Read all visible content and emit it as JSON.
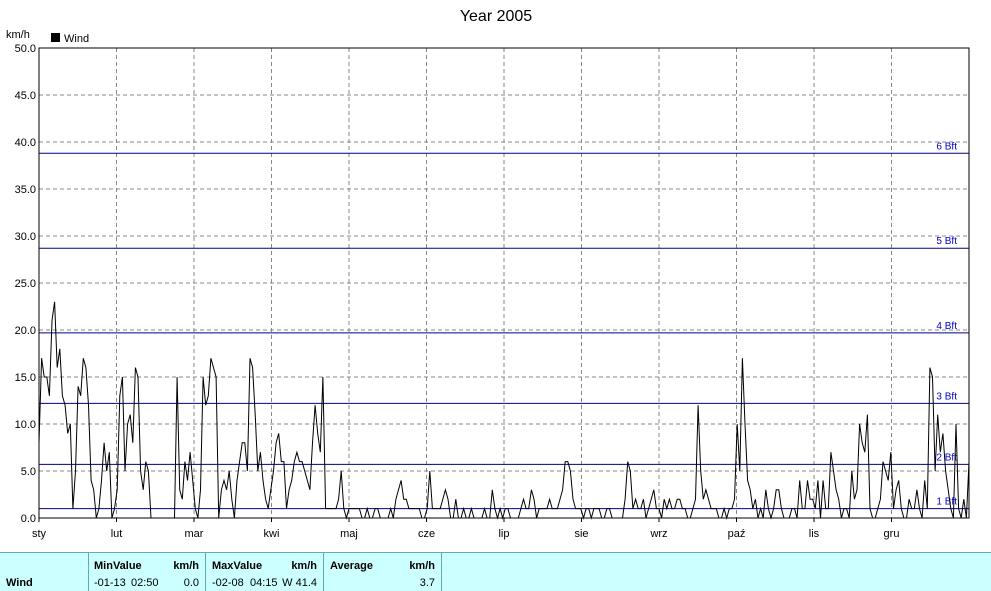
{
  "chart_data": {
    "type": "line",
    "title": "Year 2005",
    "ylabel": "km/h",
    "ylim": [
      0,
      50
    ],
    "yticks": [
      "0.0",
      "5.0",
      "10.0",
      "15.0",
      "20.0",
      "25.0",
      "30.0",
      "35.0",
      "40.0",
      "45.0",
      "50.0"
    ],
    "xticks": [
      "sty",
      "lut",
      "mar",
      "kwi",
      "maj",
      "cze",
      "lip",
      "sie",
      "wrz",
      "paź",
      "lis",
      "gru"
    ],
    "grid": true,
    "legend": {
      "position": "top-left",
      "entries": [
        "Wind"
      ]
    },
    "beaufort_lines": [
      {
        "label": "1 Bft",
        "value": 1.0
      },
      {
        "label": "2 Bft",
        "value": 5.7
      },
      {
        "label": "3 Bft",
        "value": 12.2
      },
      {
        "label": "4 Bft",
        "value": 19.7
      },
      {
        "label": "5 Bft",
        "value": 28.7
      },
      {
        "label": "6 Bft",
        "value": 38.8
      }
    ],
    "series": [
      {
        "name": "Wind",
        "values": [
          8,
          17,
          15,
          15,
          13,
          21,
          23,
          16,
          18,
          13,
          12,
          9,
          10,
          1,
          5,
          14,
          13,
          17,
          16,
          12,
          4,
          3,
          0,
          1,
          4,
          8,
          5,
          7,
          0,
          1,
          3,
          13,
          15,
          5,
          10,
          11,
          8,
          16,
          15,
          5,
          3,
          6,
          5,
          0,
          0,
          0,
          0,
          0,
          0,
          0,
          0,
          0,
          0,
          15,
          3,
          2,
          6,
          4,
          7,
          4,
          1,
          0,
          3,
          15,
          12,
          13,
          17,
          16,
          15,
          0,
          3,
          4,
          3,
          5,
          2,
          0,
          4,
          6,
          8,
          8,
          5,
          17,
          16,
          11,
          5,
          7,
          4,
          2,
          1,
          3,
          5,
          8,
          9,
          6,
          6,
          1,
          3,
          4,
          6,
          7,
          6,
          6,
          5,
          4,
          3,
          8,
          12,
          9,
          7,
          15,
          1,
          1,
          1,
          1,
          1,
          2,
          5,
          1,
          0,
          1,
          1,
          1,
          1,
          1,
          0,
          0,
          1,
          0,
          0,
          1,
          1,
          0,
          0,
          0,
          0,
          1,
          0,
          2,
          3,
          4,
          2,
          2,
          1,
          1,
          1,
          1,
          1,
          0,
          0,
          1,
          5,
          1,
          1,
          1,
          1,
          2,
          3,
          2,
          0,
          0,
          2,
          0,
          0,
          1,
          0,
          0,
          1,
          0,
          0,
          0,
          0,
          1,
          0,
          0,
          3,
          1,
          0,
          1,
          0,
          1,
          1,
          0,
          0,
          0,
          0,
          1,
          2,
          1,
          1,
          3,
          2,
          0,
          1,
          1,
          1,
          1,
          2,
          1,
          1,
          1,
          2,
          3,
          6,
          6,
          5,
          2,
          1,
          1,
          1,
          0,
          1,
          1,
          0,
          1,
          1,
          1,
          0,
          0,
          1,
          1,
          0,
          0,
          0,
          0,
          0,
          2,
          6,
          5,
          1,
          2,
          1,
          1,
          2,
          0,
          1,
          2,
          3,
          1,
          1,
          0,
          2,
          1,
          2,
          1,
          1,
          2,
          2,
          1,
          1,
          0,
          0,
          1,
          2,
          12,
          5,
          2,
          3,
          2,
          1,
          1,
          1,
          0,
          0,
          1,
          0,
          1,
          1,
          2,
          10,
          5,
          17,
          10,
          4,
          3,
          1,
          2,
          0,
          1,
          0,
          3,
          1,
          0,
          1,
          3,
          3,
          1,
          0,
          0,
          0,
          1,
          1,
          0,
          4,
          1,
          1,
          4,
          2,
          2,
          1,
          4,
          0,
          4,
          1,
          1,
          7,
          5,
          3,
          2,
          0,
          1,
          1,
          0,
          5,
          2,
          3,
          10,
          8,
          7,
          11,
          1,
          0,
          0,
          1,
          2,
          6,
          5,
          4,
          7,
          1,
          3,
          4,
          1,
          0,
          0,
          2,
          1,
          1,
          3,
          1,
          0,
          4,
          1,
          16,
          15,
          5,
          11,
          7,
          9,
          5,
          3,
          1,
          0,
          10,
          1,
          0,
          2,
          0,
          6
        ]
      }
    ]
  },
  "stats": {
    "row_label": "Wind",
    "min_header": "MinValue",
    "max_header": "MaxValue",
    "avg_header": "Average",
    "unit": "km/h",
    "min_date": "-01-13",
    "min_time": "02:50",
    "min_value": "0.0",
    "max_date": "-02-08",
    "max_time": "04:15",
    "max_value": "W 41.4",
    "avg_value": "3.7"
  },
  "colors": {
    "series": "#000000",
    "beaufort": "#00008b",
    "grid": "#888888",
    "stats_bg": "#ccffff"
  }
}
